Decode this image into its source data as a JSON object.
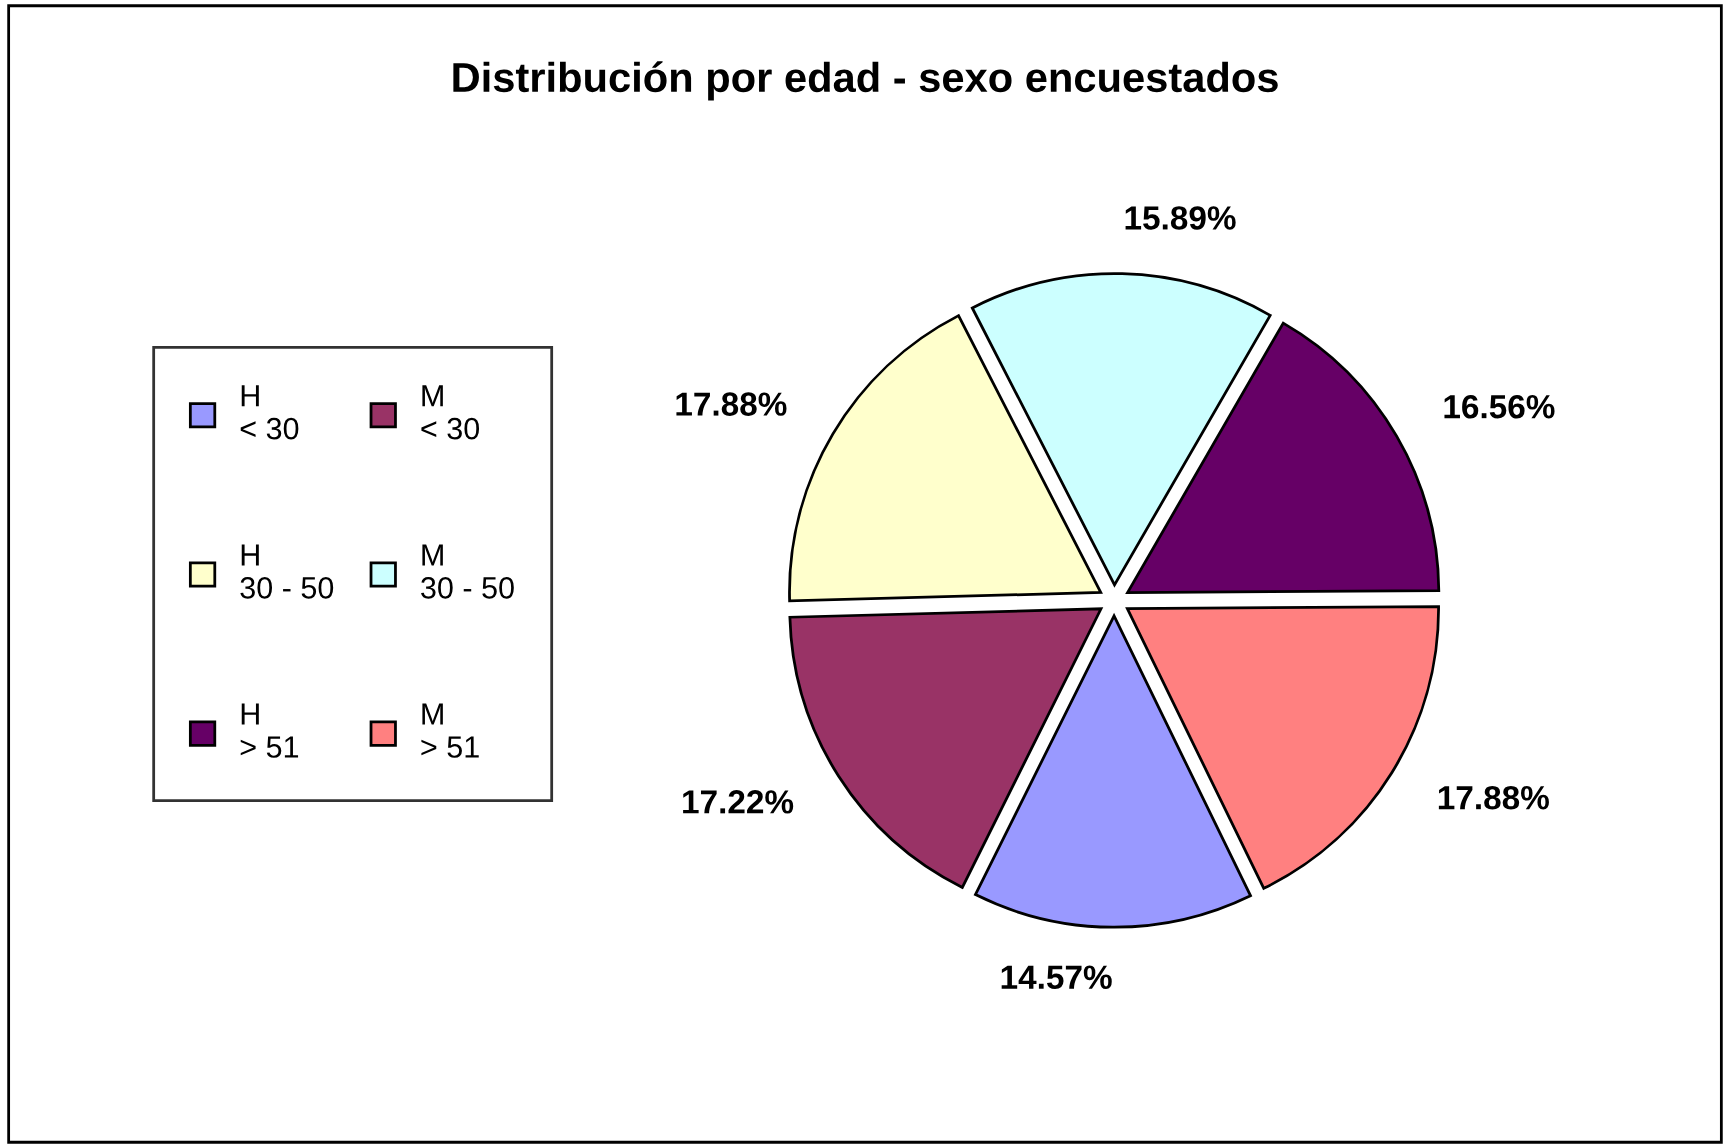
{
  "chart_data": {
    "type": "pie",
    "title": "Distribución por edad - sexo encuestados",
    "categories": [
      "H\n< 30",
      "M\n< 30",
      "H\n30 - 50",
      "M\n30 - 50",
      "H\n> 51",
      "M\n> 51"
    ],
    "values": [
      14.57,
      17.22,
      17.88,
      15.89,
      16.56,
      17.88
    ],
    "value_labels": [
      "14.57%",
      "17.22%",
      "17.88%",
      "15.89%",
      "16.56%",
      "17.88%"
    ],
    "colors": [
      "#9999ff",
      "#993366",
      "#ffffcc",
      "#ccffff",
      "#660066",
      "#ff8080"
    ],
    "legend": "left"
  }
}
